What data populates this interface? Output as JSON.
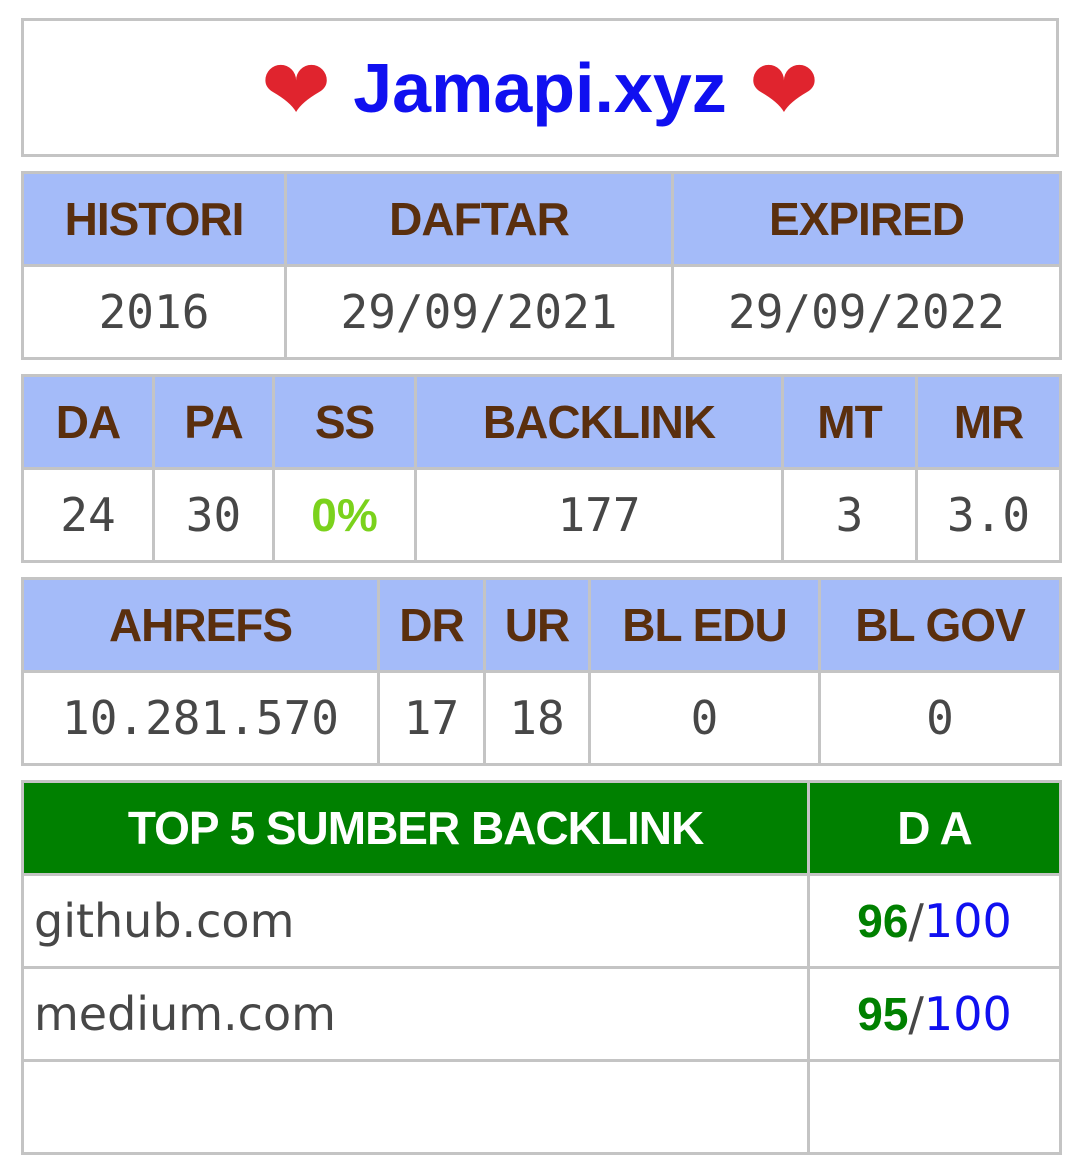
{
  "header": {
    "title": "Jamapi.xyz",
    "heart_left": "❤",
    "heart_right": "❤"
  },
  "domain_info": {
    "headers": [
      "HISTORI",
      "DAFTAR",
      "EXPIRED"
    ],
    "values": [
      "2016",
      "29/09/2021",
      "29/09/2022"
    ]
  },
  "moz_metrics": {
    "headers": [
      "DA",
      "PA",
      "SS",
      "BACKLINK",
      "MT",
      "MR"
    ],
    "values": [
      "24",
      "30",
      "0%",
      "177",
      "3",
      "3.0"
    ]
  },
  "ahrefs_metrics": {
    "headers": [
      "AHREFS",
      "DR",
      "UR",
      "BL EDU",
      "BL GOV"
    ],
    "values": [
      "10.281.570",
      "17",
      "18",
      "0",
      "0"
    ]
  },
  "top_backlinks": {
    "header_source": "TOP 5 SUMBER BACKLINK",
    "header_da": "D A",
    "rows": [
      {
        "site": "github.com",
        "da": "96",
        "slash": "/",
        "max": "100"
      },
      {
        "site": "medium.com",
        "da": "95",
        "slash": "/",
        "max": "100"
      },
      {
        "site": "",
        "da": "",
        "slash": "",
        "max": ""
      }
    ]
  },
  "colors": {
    "title": "#1010f0",
    "heart": "#e0242e",
    "header_bg": "#a4bbf9",
    "header_text": "#5a2f0e",
    "ss_value": "#7bd21c",
    "top_header_bg": "#008000",
    "da_value": "#008000",
    "da_max": "#1010f0"
  }
}
